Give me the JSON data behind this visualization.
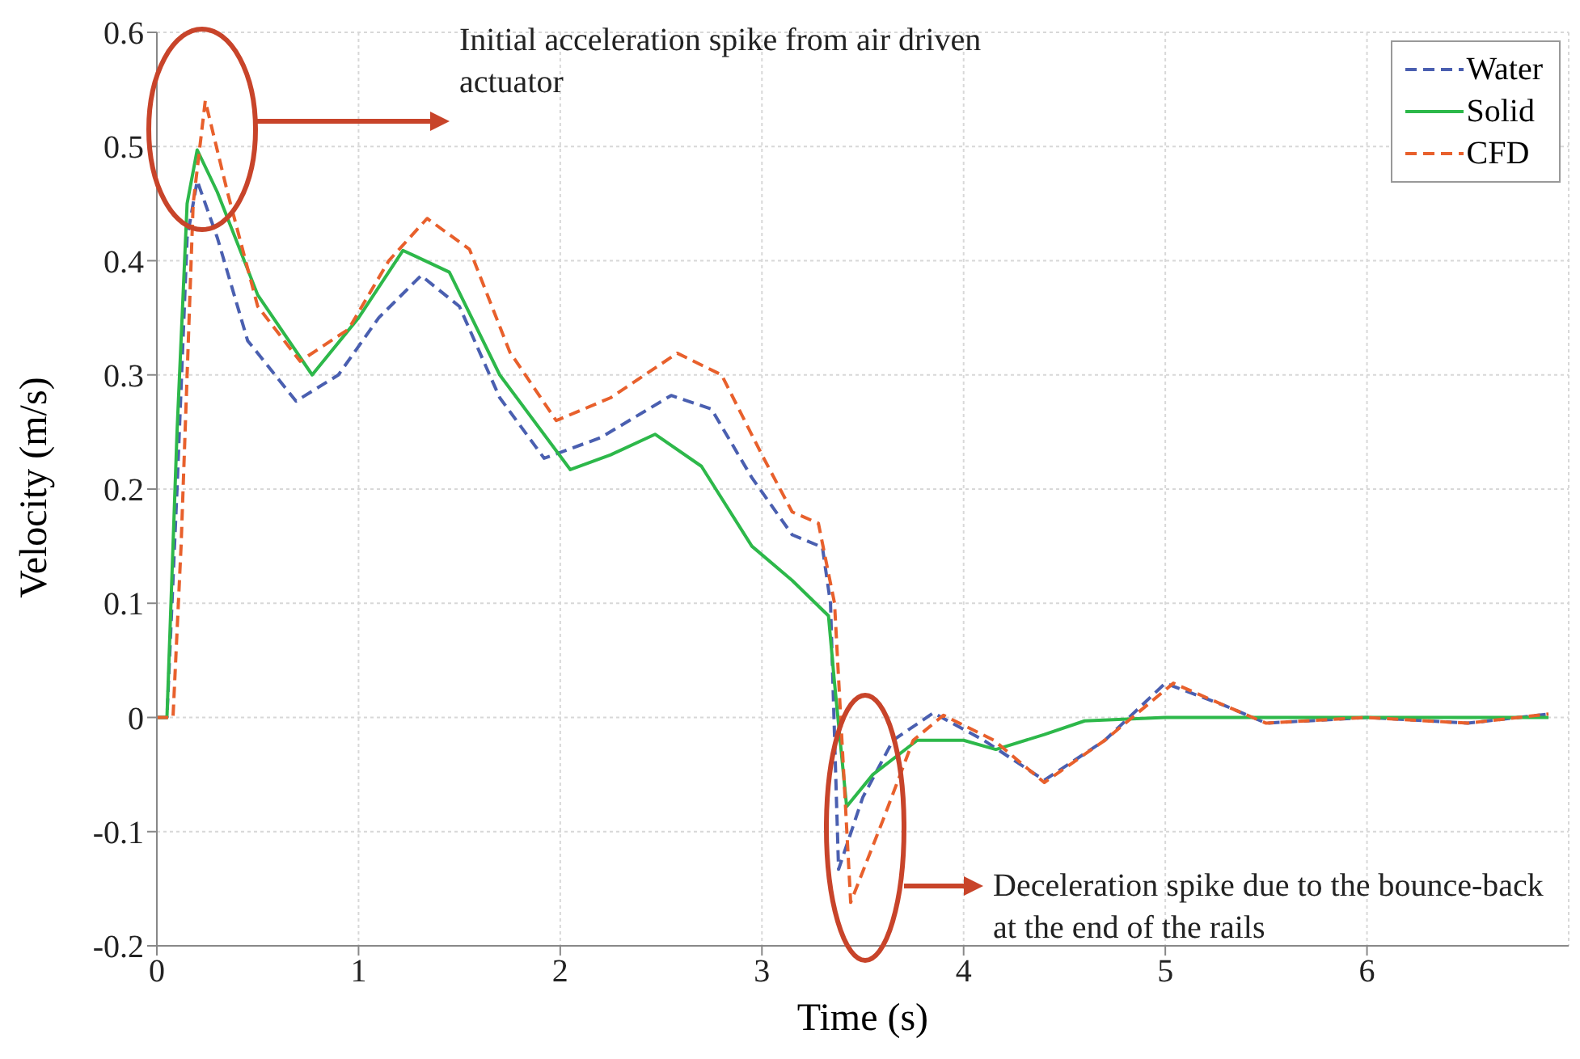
{
  "chart_data": {
    "type": "line",
    "xlabel": "Time (s)",
    "ylabel": "Velocity (m/s)",
    "xlim": [
      0,
      7
    ],
    "xticks": [
      0,
      1,
      2,
      3,
      4,
      5,
      6
    ],
    "ylim": [
      -0.2,
      0.6
    ],
    "yticks": [
      -0.2,
      -0.1,
      0,
      0.1,
      0.2,
      0.3,
      0.4,
      0.5,
      0.6
    ],
    "grid": true,
    "legend": "top right",
    "marker": "none",
    "annotations": [
      "Initial acceleration spike from air driven actuator",
      "Deceleration spike due to the bounce-back at the end of the rails"
    ],
    "series": [
      {
        "name": "Water",
        "color": "#4a5fb0",
        "line_style": "dashed",
        "x": [
          0,
          0.05,
          0.1,
          0.15,
          0.2,
          0.3,
          0.45,
          0.69,
          0.9,
          1.1,
          1.31,
          1.5,
          1.7,
          1.92,
          2.2,
          2.55,
          2.75,
          2.95,
          3.15,
          3.3,
          3.34,
          3.38,
          3.5,
          3.65,
          3.85,
          4.1,
          4.4,
          4.7,
          5.0,
          5.3,
          5.5,
          6.0,
          6.5,
          6.9
        ],
        "values": [
          0,
          0,
          0.2,
          0.42,
          0.47,
          0.42,
          0.33,
          0.277,
          0.3,
          0.35,
          0.387,
          0.36,
          0.28,
          0.227,
          0.245,
          0.282,
          0.27,
          0.21,
          0.16,
          0.149,
          0.1,
          -0.133,
          -0.07,
          -0.02,
          0.004,
          -0.02,
          -0.055,
          -0.02,
          0.03,
          0.01,
          -0.005,
          0,
          -0.005,
          0.003
        ]
      },
      {
        "name": "Solid",
        "color": "#2db84a",
        "line_style": "solid",
        "x": [
          0,
          0.05,
          0.1,
          0.15,
          0.2,
          0.3,
          0.5,
          0.77,
          1.0,
          1.22,
          1.45,
          1.7,
          2.05,
          2.25,
          2.47,
          2.7,
          2.95,
          3.15,
          3.33,
          3.36,
          3.42,
          3.55,
          3.77,
          4.0,
          4.16,
          4.4,
          4.6,
          5.0,
          6.0,
          6.9
        ],
        "values": [
          0,
          0,
          0.25,
          0.45,
          0.497,
          0.46,
          0.37,
          0.3,
          0.35,
          0.409,
          0.39,
          0.3,
          0.217,
          0.23,
          0.248,
          0.22,
          0.15,
          0.12,
          0.089,
          0.03,
          -0.078,
          -0.05,
          -0.02,
          -0.02,
          -0.028,
          -0.015,
          -0.003,
          0,
          0,
          0
        ]
      },
      {
        "name": "CFD",
        "color": "#e8602c",
        "line_style": "dashed",
        "x": [
          0,
          0.08,
          0.12,
          0.18,
          0.24,
          0.35,
          0.5,
          0.71,
          0.95,
          1.15,
          1.34,
          1.55,
          1.75,
          1.98,
          2.25,
          2.58,
          2.8,
          3.0,
          3.15,
          3.28,
          3.36,
          3.44,
          3.6,
          3.75,
          3.9,
          4.15,
          4.4,
          4.7,
          5.04,
          5.3,
          5.5,
          6.0,
          6.5,
          6.9
        ],
        "values": [
          0,
          0,
          0.15,
          0.45,
          0.54,
          0.46,
          0.36,
          0.312,
          0.34,
          0.4,
          0.437,
          0.41,
          0.32,
          0.26,
          0.28,
          0.319,
          0.3,
          0.23,
          0.18,
          0.17,
          0.1,
          -0.162,
          -0.09,
          -0.02,
          0.002,
          -0.02,
          -0.057,
          -0.02,
          0.03,
          0.01,
          -0.005,
          0,
          -0.005,
          0.003
        ]
      }
    ]
  }
}
